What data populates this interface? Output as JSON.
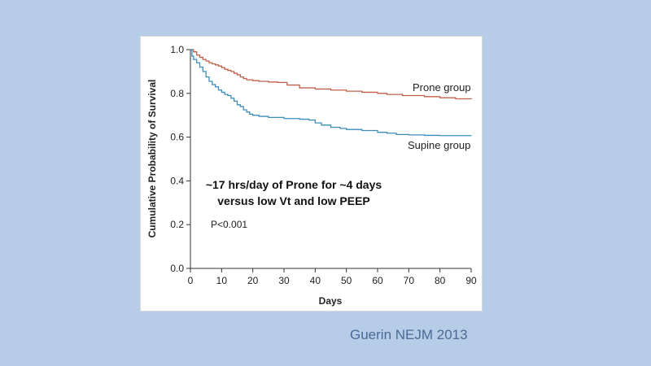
{
  "slide": {
    "citation": "Guerin NEJM 2013",
    "background_color": "#b7cce6"
  },
  "chart_data": {
    "type": "line",
    "title": "",
    "xlabel": "Days",
    "ylabel": "Cumulative Probability of Survival",
    "xlim": [
      0,
      90
    ],
    "ylim": [
      0,
      1.0
    ],
    "x_ticks": [
      "0",
      "10",
      "20",
      "30",
      "40",
      "50",
      "60",
      "70",
      "80",
      "90"
    ],
    "y_ticks": [
      "0.0",
      "0.2",
      "0.4",
      "0.6",
      "0.8",
      "1.0"
    ],
    "grid": false,
    "series": [
      {
        "name": "Prone group",
        "color": "#c0604a",
        "x": [
          0,
          1,
          2,
          3,
          4,
          5,
          6,
          7,
          8,
          9,
          10,
          11,
          12,
          13,
          14,
          15,
          16,
          17,
          18,
          20,
          22,
          25,
          28,
          31,
          35,
          40,
          45,
          50,
          55,
          60,
          63,
          68,
          75,
          80,
          85,
          90
        ],
        "y": [
          1.0,
          0.99,
          0.975,
          0.965,
          0.955,
          0.948,
          0.94,
          0.935,
          0.93,
          0.925,
          0.918,
          0.91,
          0.905,
          0.9,
          0.892,
          0.885,
          0.875,
          0.868,
          0.862,
          0.858,
          0.855,
          0.852,
          0.85,
          0.838,
          0.825,
          0.82,
          0.815,
          0.81,
          0.805,
          0.8,
          0.795,
          0.79,
          0.785,
          0.78,
          0.775,
          0.773
        ]
      },
      {
        "name": "Supine group",
        "color": "#3d8dbb",
        "x": [
          0,
          0.5,
          1,
          2,
          3,
          4,
          5,
          6,
          7,
          8,
          9,
          10,
          11,
          12,
          13,
          14,
          15,
          16,
          17,
          18,
          19,
          20,
          22,
          25,
          30,
          35,
          38,
          40,
          42,
          45,
          48,
          50,
          55,
          60,
          63,
          66,
          70,
          75,
          80,
          85,
          90
        ],
        "y": [
          1.0,
          0.97,
          0.955,
          0.94,
          0.92,
          0.9,
          0.875,
          0.855,
          0.84,
          0.83,
          0.815,
          0.805,
          0.795,
          0.79,
          0.778,
          0.765,
          0.748,
          0.74,
          0.725,
          0.715,
          0.705,
          0.7,
          0.695,
          0.69,
          0.685,
          0.682,
          0.678,
          0.665,
          0.655,
          0.645,
          0.64,
          0.635,
          0.63,
          0.622,
          0.618,
          0.612,
          0.61,
          0.608,
          0.607,
          0.607,
          0.606
        ]
      }
    ],
    "annotations": [
      {
        "id": "study_note_line1",
        "text": "~17 hrs/day of Prone for ~4 days"
      },
      {
        "id": "study_note_line2",
        "text": "versus low Vt and low PEEP"
      },
      {
        "id": "p_value",
        "text": "P<0.001"
      }
    ]
  }
}
